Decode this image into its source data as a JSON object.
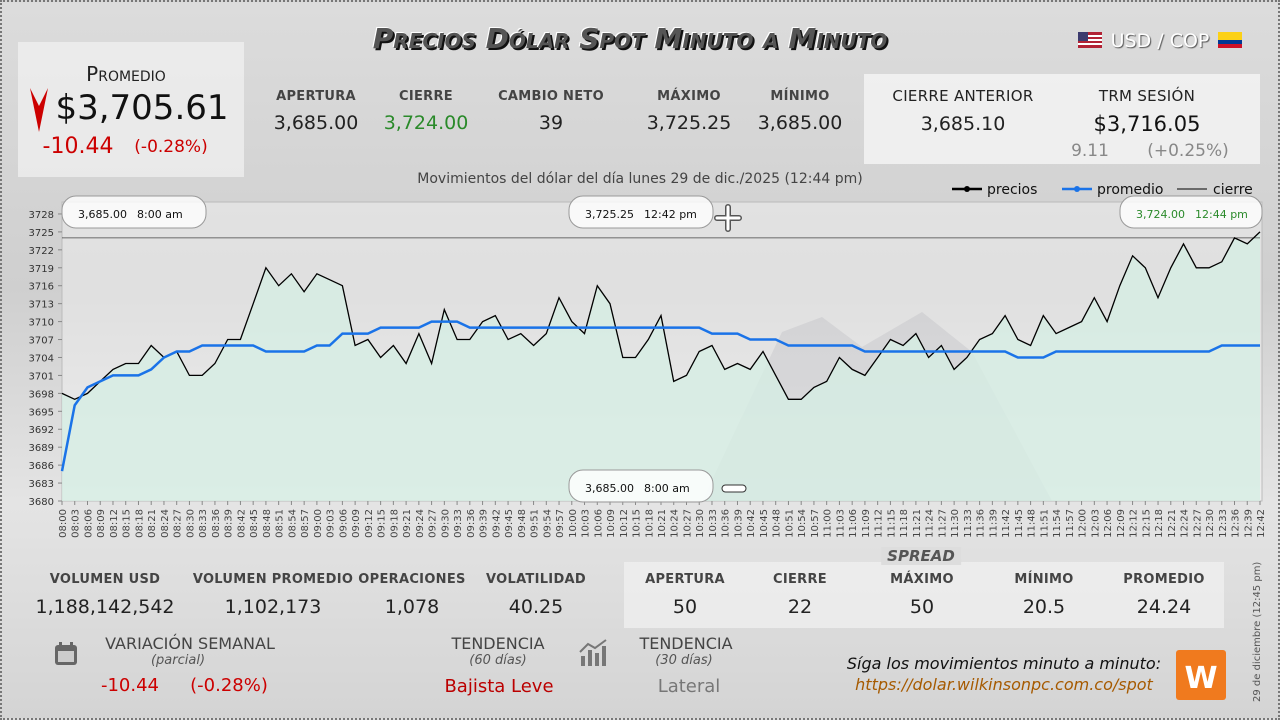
{
  "header": {
    "title": "Precios Dólar Spot Minuto a Minuto",
    "pair": "USD / COP"
  },
  "summary": {
    "label": "Promedio",
    "value": "$3,705.61",
    "change": "-10.44",
    "change_pct": "(-0.28%)"
  },
  "stats": [
    {
      "label": "Apertura",
      "value": "3,685.00"
    },
    {
      "label": "Cierre",
      "value": "3,724.00"
    },
    {
      "label": "Cambio neto",
      "value": "39"
    },
    {
      "label": "Máximo",
      "value": "3,725.25"
    },
    {
      "label": "Mínimo",
      "value": "3,685.00"
    }
  ],
  "previous_close": {
    "label": "Cierre anterior",
    "value": "3,685.10"
  },
  "trm": {
    "label": "TRM sesión",
    "value": "$3,716.05",
    "change": "9.11",
    "change_pct": "(+0.25%)"
  },
  "chart_data": {
    "type": "line",
    "subtitle": "Movimientos del dólar del día lunes 29 de dic./2025 (12:44 pm)",
    "categories": [
      "08:00",
      "08:03",
      "08:06",
      "08:09",
      "08:12",
      "08:15",
      "08:18",
      "08:21",
      "08:24",
      "08:27",
      "08:30",
      "08:33",
      "08:36",
      "08:39",
      "08:42",
      "08:45",
      "08:48",
      "08:51",
      "08:54",
      "08:57",
      "09:00",
      "09:03",
      "09:06",
      "09:09",
      "09:12",
      "09:15",
      "09:18",
      "09:21",
      "09:24",
      "09:27",
      "09:30",
      "09:33",
      "09:36",
      "09:39",
      "09:42",
      "09:45",
      "09:48",
      "09:51",
      "09:54",
      "09:57",
      "10:00",
      "10:03",
      "10:06",
      "10:09",
      "10:12",
      "10:15",
      "10:18",
      "10:21",
      "10:24",
      "10:27",
      "10:30",
      "10:33",
      "10:36",
      "10:39",
      "10:42",
      "10:45",
      "10:48",
      "10:51",
      "10:54",
      "10:57",
      "11:00",
      "11:03",
      "11:06",
      "11:09",
      "11:12",
      "11:15",
      "11:18",
      "11:21",
      "11:24",
      "11:27",
      "11:30",
      "11:33",
      "11:36",
      "11:39",
      "11:42",
      "11:45",
      "11:48",
      "11:51",
      "11:54",
      "11:57",
      "12:00",
      "12:03",
      "12:06",
      "12:09",
      "12:12",
      "12:15",
      "12:18",
      "12:21",
      "12:24",
      "12:27",
      "12:30",
      "12:33",
      "12:36",
      "12:39",
      "12:42"
    ],
    "series": [
      {
        "name": "precios",
        "color": "#000000",
        "fill": "#d6eee4",
        "values": [
          3698,
          3697,
          3698,
          3700,
          3702,
          3703,
          3703,
          3706,
          3704,
          3705,
          3701,
          3701,
          3703,
          3707,
          3707,
          3713,
          3719,
          3716,
          3718,
          3715,
          3718,
          3717,
          3716,
          3706,
          3707,
          3704,
          3706,
          3703,
          3708,
          3703,
          3712,
          3707,
          3707,
          3710,
          3711,
          3707,
          3708,
          3706,
          3708,
          3714,
          3710,
          3708,
          3716,
          3713,
          3704,
          3704,
          3707,
          3711,
          3700,
          3701,
          3705,
          3706,
          3702,
          3703,
          3702,
          3705,
          3701,
          3697,
          3697,
          3699,
          3700,
          3704,
          3702,
          3701,
          3704,
          3707,
          3706,
          3708,
          3704,
          3706,
          3702,
          3704,
          3707,
          3708,
          3711,
          3707,
          3706,
          3711,
          3708,
          3709,
          3710,
          3714,
          3710,
          3716,
          3721,
          3719,
          3714,
          3719,
          3723,
          3719,
          3719,
          3720,
          3724,
          3723,
          3725
        ]
      },
      {
        "name": "promedio",
        "color": "#1a73e8",
        "values": [
          3685,
          3696,
          3699,
          3700,
          3701,
          3701,
          3701,
          3702,
          3704,
          3705,
          3705,
          3706,
          3706,
          3706,
          3706,
          3706,
          3705,
          3705,
          3705,
          3705,
          3706,
          3706,
          3708,
          3708,
          3708,
          3709,
          3709,
          3709,
          3709,
          3710,
          3710,
          3710,
          3709,
          3709,
          3709,
          3709,
          3709,
          3709,
          3709,
          3709,
          3709,
          3709,
          3709,
          3709,
          3709,
          3709,
          3709,
          3709,
          3709,
          3709,
          3709,
          3708,
          3708,
          3708,
          3707,
          3707,
          3707,
          3706,
          3706,
          3706,
          3706,
          3706,
          3706,
          3705,
          3705,
          3705,
          3705,
          3705,
          3705,
          3705,
          3705,
          3705,
          3705,
          3705,
          3705,
          3704,
          3704,
          3704,
          3705,
          3705,
          3705,
          3705,
          3705,
          3705,
          3705,
          3705,
          3705,
          3705,
          3705,
          3705,
          3705,
          3706,
          3706,
          3706,
          3706
        ]
      }
    ],
    "reference_lines": [
      {
        "name": "cierre",
        "color": "#000000",
        "value": 3724
      }
    ],
    "ylim": [
      3680,
      3730
    ],
    "yticks": [
      3680,
      3683,
      3686,
      3689,
      3692,
      3695,
      3698,
      3701,
      3704,
      3707,
      3710,
      3713,
      3716,
      3719,
      3722,
      3725,
      3728
    ],
    "annotations": [
      {
        "text": "3,685.00",
        "time": "8:00 am"
      },
      {
        "text": "3,725.25",
        "time": "12:42 pm"
      },
      {
        "text": "3,724.00",
        "time": "12:44 pm"
      },
      {
        "text": "3,685.00",
        "time": "8:00 am"
      }
    ]
  },
  "volume_stats": [
    {
      "label": "Volumen USD",
      "value": "1,188,142,542"
    },
    {
      "label": "Volumen promedio",
      "value": "1,102,173"
    },
    {
      "label": "Operaciones",
      "value": "1,078"
    },
    {
      "label": "Volatilidad",
      "value": "40.25"
    }
  ],
  "spread": {
    "title": "Spread",
    "items": [
      {
        "label": "Apertura",
        "value": "50"
      },
      {
        "label": "Cierre",
        "value": "22"
      },
      {
        "label": "Máximo",
        "value": "50"
      },
      {
        "label": "Mínimo",
        "value": "20.5"
      },
      {
        "label": "Promedio",
        "value": "24.24"
      }
    ]
  },
  "weekly": {
    "label": "Variación semanal",
    "note": "(parcial)",
    "change": "-10.44",
    "change_pct": "(-0.28%)"
  },
  "trend60": {
    "label": "Tendencia",
    "note": "(60 días)",
    "value": "Bajista Leve"
  },
  "trend30": {
    "label": "Tendencia",
    "note": "(30 días)",
    "value": "Lateral"
  },
  "footer": {
    "text": "Síga los movimientos minuto a minuto:",
    "url": "https://dolar.wilkinsonpc.com.co/spot",
    "timestamp": "29 de diciembre (12:45 pm)"
  }
}
